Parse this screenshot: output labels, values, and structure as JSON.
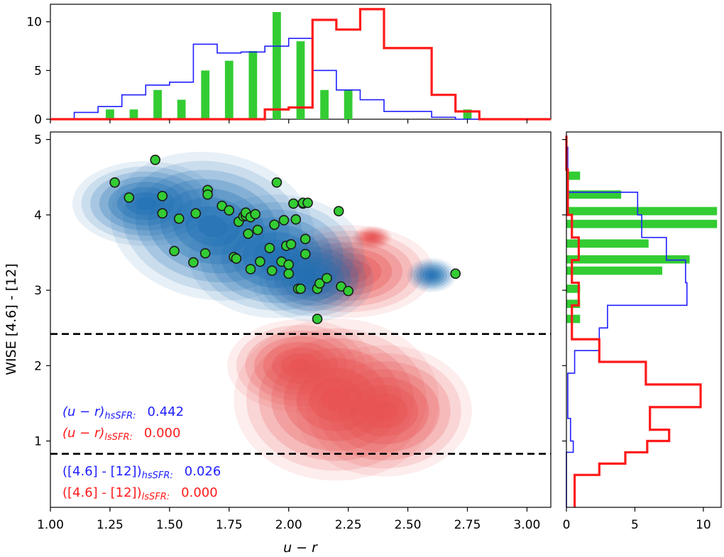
{
  "chart_data": {
    "type": "scatter",
    "title": "",
    "xlabel": "u − r",
    "ylabel": "WISE [4.6] - [12]",
    "xlim": [
      1.0,
      3.1
    ],
    "ylim": [
      0.12,
      5.1
    ],
    "x_ticks": [
      "1.00",
      "1.25",
      "1.50",
      "1.75",
      "2.00",
      "2.25",
      "2.50",
      "2.75",
      "3.00"
    ],
    "y_ticks": [
      "1",
      "2",
      "3",
      "4",
      "5"
    ],
    "colors": {
      "hsSFR": "#2020ff",
      "lsSFR": "#ff1a1a",
      "green": "#33cc33",
      "blue_fill": "#1f6fb4",
      "red_fill": "#e85050"
    },
    "thresholds": [
      2.42,
      0.83
    ],
    "scatter_points": {
      "x": [
        1.27,
        1.33,
        1.44,
        1.47,
        1.47,
        1.52,
        1.54,
        1.6,
        1.61,
        1.65,
        1.66,
        1.66,
        1.72,
        1.75,
        1.77,
        1.78,
        1.79,
        1.81,
        1.82,
        1.82,
        1.83,
        1.84,
        1.84,
        1.86,
        1.87,
        1.88,
        1.92,
        1.93,
        1.94,
        1.95,
        1.97,
        1.98,
        1.99,
        2.0,
        2.0,
        2.01,
        2.02,
        2.03,
        2.04,
        2.05,
        2.06,
        2.06,
        2.07,
        2.07,
        2.08,
        2.12,
        2.12,
        2.13,
        2.16,
        2.21,
        2.22,
        2.25,
        2.7
      ],
      "y": [
        4.43,
        4.23,
        4.73,
        4.25,
        4.02,
        3.52,
        3.95,
        3.37,
        4.02,
        3.49,
        4.33,
        4.27,
        4.12,
        4.06,
        3.44,
        3.42,
        3.91,
        3.98,
        3.99,
        4.03,
        3.75,
        3.28,
        3.97,
        4.01,
        3.8,
        3.38,
        3.56,
        3.26,
        3.87,
        4.43,
        3.38,
        3.93,
        3.59,
        3.22,
        3.34,
        3.61,
        4.15,
        3.94,
        3.02,
        3.02,
        4.15,
        4.16,
        3.68,
        3.48,
        4.16,
        2.62,
        3.02,
        3.09,
        3.16,
        4.05,
        3.05,
        2.99,
        3.22
      ]
    },
    "top_histogram": {
      "bins": [
        1.0,
        1.05,
        1.1,
        1.15,
        1.2,
        1.25,
        1.3,
        1.35,
        1.4,
        1.45,
        1.5,
        1.55,
        1.6,
        1.65,
        1.7,
        1.75,
        1.8,
        1.85,
        1.9,
        1.95,
        2.0,
        2.05,
        2.1,
        2.15,
        2.2,
        2.25,
        2.3,
        2.35,
        2.4,
        2.45,
        2.5,
        2.55,
        2.6,
        2.65,
        2.7,
        2.75,
        2.8,
        2.85,
        2.9,
        2.95,
        3.0,
        3.05,
        3.1
      ],
      "y_ticks": [
        "0",
        "5",
        "10"
      ],
      "ylim": [
        0,
        11.8
      ],
      "series": [
        {
          "name": "hsSFR",
          "values": [
            0,
            0,
            0.7,
            0.7,
            1.3,
            1.3,
            2.5,
            2.5,
            3.5,
            3.5,
            3.8,
            3.8,
            7.7,
            7.7,
            6.8,
            6.8,
            6.9,
            6.9,
            7.5,
            7.5,
            8.3,
            8.3,
            5.0,
            5.0,
            3.0,
            3.0,
            2.0,
            2.0,
            0.8,
            0.8,
            0.8,
            0.8,
            0.2,
            0.2,
            0,
            0,
            0,
            0,
            0,
            0,
            0,
            0
          ]
        },
        {
          "name": "lsSFR",
          "values": [
            0,
            0,
            0,
            0,
            0,
            0,
            0,
            0,
            0,
            0,
            0,
            0,
            0,
            0,
            0,
            0,
            0,
            0,
            1.0,
            1.0,
            1.2,
            1.2,
            10.2,
            10.2,
            9.2,
            9.2,
            11.3,
            11.3,
            7.3,
            7.3,
            7.3,
            7.3,
            2.5,
            2.5,
            0.8,
            0.8,
            0,
            0,
            0,
            0,
            0,
            0
          ]
        }
      ],
      "bars": {
        "centers": [
          1.25,
          1.3,
          1.35,
          1.4,
          1.45,
          1.5,
          1.55,
          1.6,
          1.65,
          1.7,
          1.75,
          1.8,
          1.85,
          1.9,
          1.95,
          2.0,
          2.05,
          2.1,
          2.15,
          2.2,
          2.25,
          2.3,
          2.35,
          2.4,
          2.45,
          2.5,
          2.55,
          2.6,
          2.65,
          2.7,
          2.75
        ],
        "values": [
          1,
          0,
          1,
          0,
          3,
          0,
          2,
          0,
          5,
          0,
          6,
          0,
          7,
          0,
          11,
          0,
          8,
          0,
          3,
          0,
          3,
          0,
          0,
          0,
          0,
          0,
          0,
          0,
          0,
          0,
          1
        ]
      }
    },
    "right_histogram": {
      "bins": [
        0.12,
        0.25,
        0.4,
        0.55,
        0.7,
        0.85,
        1.0,
        1.15,
        1.3,
        1.45,
        1.6,
        1.75,
        1.9,
        2.05,
        2.2,
        2.35,
        2.5,
        2.65,
        2.8,
        2.95,
        3.1,
        3.25,
        3.4,
        3.55,
        3.7,
        3.85,
        4.0,
        4.15,
        4.3,
        4.45,
        4.6,
        4.75,
        4.9,
        5.05
      ],
      "x_ticks": [
        "0",
        "5",
        "10"
      ],
      "xlim": [
        0,
        11.3
      ],
      "series": [
        {
          "name": "hsSFR",
          "values": [
            0,
            0,
            0,
            0,
            0,
            0.5,
            0.3,
            0.3,
            0.1,
            0.1,
            0.1,
            0.1,
            0.6,
            0.6,
            2.4,
            2.4,
            3.0,
            3.0,
            8.8,
            8.8,
            8.7,
            8.7,
            7.3,
            7.3,
            5.5,
            5.5,
            5.2,
            5.2,
            0.1,
            0.1,
            0.1,
            0.1,
            0,
            0
          ]
        },
        {
          "name": "lsSFR",
          "values": [
            0.6,
            0.6,
            0.6,
            2.4,
            4.3,
            5.9,
            7.5,
            6.1,
            6.1,
            9.8,
            9.8,
            5.8,
            5.8,
            2.4,
            2.4,
            0.4,
            0.4,
            0.4,
            0.9,
            0.9,
            0.4,
            0.4,
            0.9,
            0.9,
            0.4,
            0.4,
            0.1,
            0.1,
            0.1,
            0.1,
            0,
            0,
            0
          ]
        },
        {
          "name": "green",
          "bar_centers": [
            2.62,
            2.82,
            3.02,
            3.26,
            3.41,
            3.62,
            3.88,
            4.05,
            4.27,
            4.52
          ],
          "values": [
            1,
            1,
            1,
            7,
            9,
            6,
            11,
            11,
            4,
            1
          ]
        }
      ]
    },
    "contour_levels": 8,
    "annotations": [
      {
        "kind": "u-r",
        "group": "hsSFR",
        "value": "0.442",
        "label_text": "(u − r)",
        "sub": "hsSFR:"
      },
      {
        "kind": "u-r",
        "group": "lsSFR",
        "value": "0.000",
        "label_text": "(u − r)",
        "sub": "lsSFR:"
      },
      {
        "kind": "wise",
        "group": "hsSFR",
        "value": "0.026",
        "label_text": "([4.6] - [12])",
        "sub": "hsSFR:"
      },
      {
        "kind": "wise",
        "group": "lsSFR",
        "value": "0.000",
        "label_text": "([4.6] - [12])",
        "sub": "lsSFR:"
      }
    ]
  }
}
